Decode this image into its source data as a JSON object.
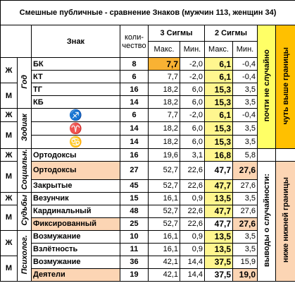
{
  "title": "Смешные публичные - сравнение Знаков (мужчин 113, женщин 34)",
  "header": {
    "sign": "Знак",
    "count": [
      "коли-",
      "чество"
    ],
    "sigma3": "3 Сигмы",
    "sigma2": "2 Сигмы",
    "max3": "Макс.",
    "min3": "Мин.",
    "max2": "Макс.",
    "min2": "Мин."
  },
  "side": {
    "top_left": "почти не случайно",
    "top_left_color": "#ffff66",
    "top_right": "чуть выше границы",
    "top_right_color": "#ffc000",
    "bottom_left": "выводы о случайности:",
    "bottom_right": "ниже нижней границы",
    "bottom_right_color": "#fcd5b4"
  },
  "groups": [
    {
      "label": "Год",
      "sections": [
        {
          "gender": "Ж",
          "rows": [
            {
              "sign": "БК",
              "count": 8,
              "max3": "7,7",
              "min3": "-2,0",
              "max2": "6,1",
              "min2": "-0,4",
              "fill": {
                "max3": "#f9b233",
                "max2": "#fff68f"
              }
            },
            {
              "sign": "КТ",
              "count": 6,
              "max3": "7,7",
              "min3": "-2,0",
              "max2": "6,1",
              "min2": "-0,4",
              "fill": {
                "max2": "#fff68f"
              }
            }
          ]
        },
        {
          "gender": "М",
          "rows": [
            {
              "sign": "ТГ",
              "count": 16,
              "max3": "18,2",
              "min3": "6,0",
              "max2": "15,3",
              "min2": "3,5",
              "fill": {
                "max2": "#fff68f"
              }
            },
            {
              "sign": "КБ",
              "count": 14,
              "max3": "18,2",
              "min3": "6,0",
              "max2": "15,3",
              "min2": "3,5",
              "fill": {
                "max2": "#fff68f"
              }
            }
          ]
        }
      ]
    },
    {
      "label": "Зодиак",
      "sections": [
        {
          "gender": "Ж",
          "rows": [
            {
              "sign": "♐",
              "count": 6,
              "max3": "7,7",
              "min3": "-2,0",
              "max2": "6,1",
              "min2": "-0,4",
              "fill": {
                "max2": "#fff68f"
              }
            }
          ]
        },
        {
          "gender": "М",
          "rows": [
            {
              "sign": "♈",
              "count": 14,
              "max3": "18,2",
              "min3": "6,0",
              "max2": "15,3",
              "min2": "3,5",
              "fill": {
                "max2": "#fff68f"
              }
            },
            {
              "sign": "♋",
              "count": 14,
              "max3": "18,2",
              "min3": "6,0",
              "max2": "15,3",
              "min2": "3,5",
              "fill": {
                "max2": "#fff68f"
              }
            }
          ]
        }
      ]
    },
    {
      "label": "Социальн.",
      "sections": [
        {
          "gender": "Ж",
          "rows": [
            {
              "sign": "Ортодоксы",
              "count": 16,
              "max3": "19,6",
              "min3": "3,1",
              "max2": "16,8",
              "min2": "5,8",
              "fill": {
                "max2": "#fff68f"
              }
            }
          ]
        },
        {
          "gender": "М",
          "rows": [
            {
              "sign": "Ортодоксы",
              "count": 27,
              "max3": "52,7",
              "min3": "22,6",
              "max2": "47,7",
              "min2": "27,6",
              "fill": {
                "sign": "#fcd5b4",
                "min2": "#fcd5b4"
              }
            },
            {
              "sign": "Закрытые",
              "count": 45,
              "max3": "52,7",
              "min3": "22,6",
              "max2": "47,7",
              "min2": "27,6",
              "fill": {
                "max2": "#fff68f"
              }
            }
          ]
        }
      ]
    },
    {
      "label": "Судьбы",
      "sections": [
        {
          "gender": "Ж",
          "rows": [
            {
              "sign": "Везунчик",
              "count": 15,
              "max3": "16,1",
              "min3": "0,9",
              "max2": "13,5",
              "min2": "3,5",
              "fill": {
                "max2": "#fff68f"
              }
            }
          ]
        },
        {
          "gender": "М",
          "rows": [
            {
              "sign": "Кардинальный",
              "count": 48,
              "max3": "52,7",
              "min3": "22,6",
              "max2": "47,7",
              "min2": "27,6",
              "fill": {
                "max2": "#fff68f"
              }
            },
            {
              "sign": "Фиксированный",
              "count": 25,
              "max3": "52,7",
              "min3": "22,6",
              "max2": "47,7",
              "min2": "27,6",
              "fill": {
                "sign": "#fcd5b4",
                "min2": "#fcd5b4"
              }
            }
          ]
        }
      ]
    },
    {
      "label": "Психолог.",
      "sections": [
        {
          "gender": "Ж",
          "rows": [
            {
              "sign": "Возмужание",
              "count": 10,
              "max3": "16,1",
              "min3": "0,9",
              "max2": "13,5",
              "min2": "3,5",
              "fill": {
                "max2": "#fff68f"
              }
            },
            {
              "sign": "Взлётность",
              "count": 11,
              "max3": "16,1",
              "min3": "0,9",
              "max2": "13,5",
              "min2": "3,5",
              "fill": {
                "max2": "#fff68f"
              }
            }
          ]
        },
        {
          "gender": "М",
          "rows": [
            {
              "sign": "Возмужание",
              "count": 36,
              "max3": "42,1",
              "min3": "14,4",
              "max2": "37,5",
              "min2": "15,9",
              "fill": {
                "max2": "#fff68f"
              }
            },
            {
              "sign": "Деятели",
              "count": 19,
              "max3": "42,1",
              "min3": "14,4",
              "max2": "37,5",
              "min2": "19,0",
              "fill": {
                "sign": "#fcd5b4",
                "min2": "#fcd5b4"
              }
            }
          ]
        }
      ]
    }
  ]
}
